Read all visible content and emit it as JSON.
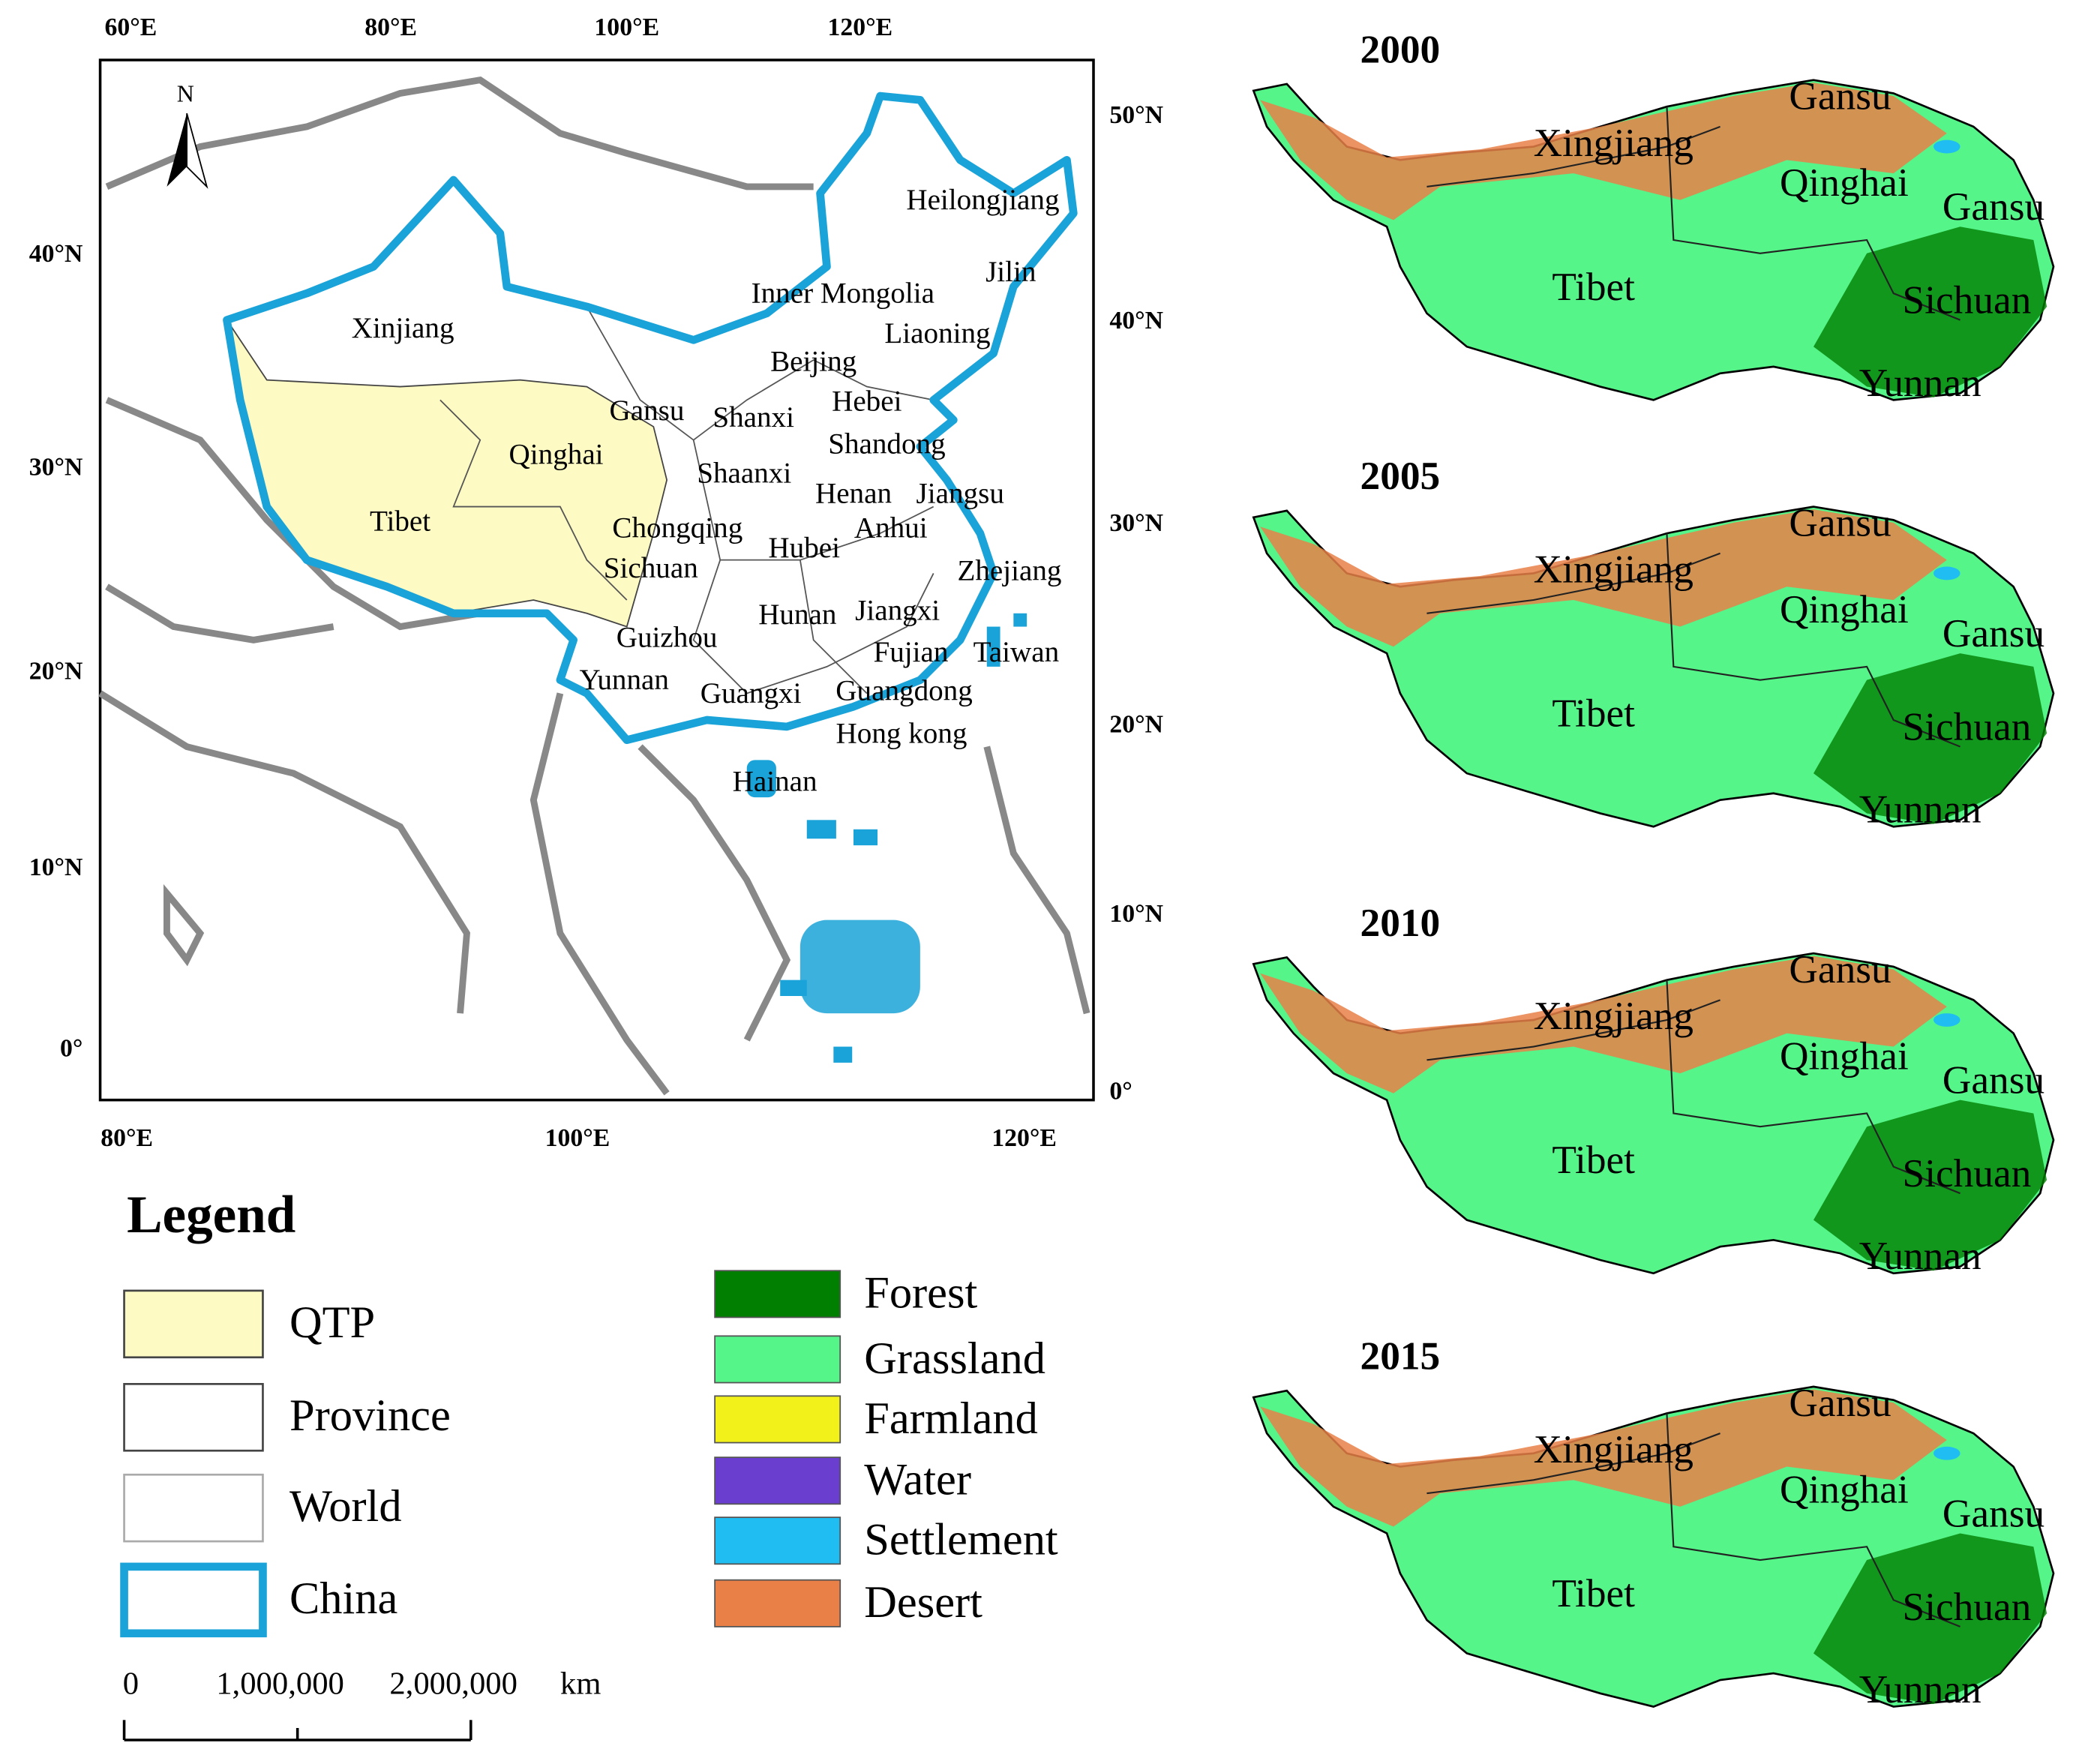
{
  "map": {
    "top_ticks": [
      "60°E",
      "80°E",
      "100°E",
      "120°E"
    ],
    "bottom_ticks": [
      "80°E",
      "100°E",
      "120°E"
    ],
    "left_ticks": [
      "40°N",
      "30°N",
      "20°N",
      "10°N",
      "0°"
    ],
    "right_ticks": [
      "50°N",
      "40°N",
      "30°N",
      "20°N",
      "10°N",
      "0°"
    ],
    "north": "N",
    "labels": [
      "Heilongjiang",
      "Jilin",
      "Inner Mongolia",
      "Liaoning",
      "Xinjiang",
      "Beijing",
      "Hebei",
      "Gansu",
      "Shanxi",
      "Qinghai",
      "Shandong",
      "Shaanxi",
      "Henan",
      "Jiangsu",
      "Tibet",
      "Chongqing",
      "Anhui",
      "Hubei",
      "Sichuan",
      "Zhejiang",
      "Hunan",
      "Jiangxi",
      "Guizhou",
      "Fujian",
      "Taiwan",
      "Yunnan",
      "Guangxi",
      "Guangdong",
      "Hong kong",
      "Hainan"
    ]
  },
  "legend": {
    "title": "Legend",
    "items": [
      {
        "name": "QTP",
        "fill": "#fdfac3",
        "stroke": "#444444"
      },
      {
        "name": "Province",
        "fill": "#ffffff",
        "stroke": "#444444"
      },
      {
        "name": "World",
        "fill": "#ffffff",
        "stroke": "#aaaaaa"
      },
      {
        "name": "China",
        "fill": "#ffffff",
        "stroke": "#1aa3d8"
      }
    ],
    "landcover": [
      {
        "name": "Forest",
        "color": "#007f00"
      },
      {
        "name": "Grassland",
        "color": "#55f58a"
      },
      {
        "name": "Farmland",
        "color": "#f2f21a"
      },
      {
        "name": "Water",
        "color": "#6a3fcf"
      },
      {
        "name": "Settlement",
        "color": "#1fbdf2"
      },
      {
        "name": "Desert",
        "color": "#e88048"
      }
    ]
  },
  "scalebar": {
    "labels": [
      "0",
      "1,000,000",
      "2,000,000",
      "km"
    ]
  },
  "panels": [
    {
      "year": "2000",
      "labels": [
        "Gansu",
        "Xingjiang",
        "Qinghai",
        "Gansu",
        "Tibet",
        "Sichuan",
        "Yunnan"
      ]
    },
    {
      "year": "2005",
      "labels": [
        "Gansu",
        "Xingjiang",
        "Qinghai",
        "Gansu",
        "Tibet",
        "Sichuan",
        "Yunnan"
      ]
    },
    {
      "year": "2010",
      "labels": [
        "Gansu",
        "Xingjiang",
        "Qinghai",
        "Gansu",
        "Tibet",
        "Sichuan",
        "Yunnan"
      ]
    },
    {
      "year": "2015",
      "labels": [
        "Gansu",
        "Xingjiang",
        "Qinghai",
        "Gansu",
        "Tibet",
        "Sichuan",
        "Yunnan"
      ]
    }
  ]
}
